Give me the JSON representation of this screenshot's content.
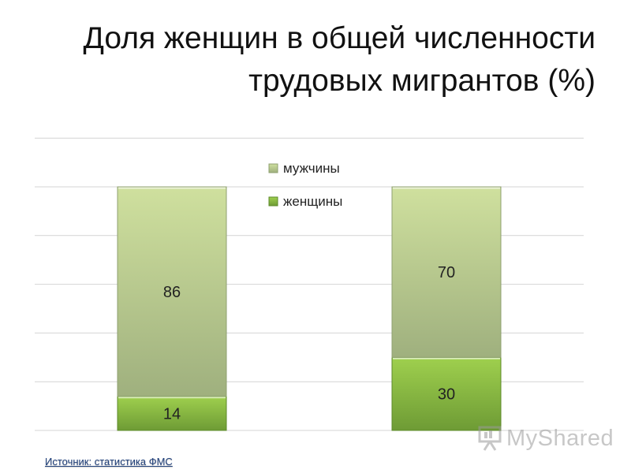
{
  "slide": {
    "title_line1": "Доля женщин в общей численности",
    "title_line2": "трудовых мигрантов (%)",
    "source": "Источник: статистика ФМС",
    "watermark": "MyShared"
  },
  "colors": {
    "men_top": "#cfe09e",
    "men_bottom": "#9fb07e",
    "women_top": "#9fd04e",
    "women_bottom": "#6e9b35",
    "gridline": "#d4d4d4"
  },
  "chart_data": {
    "type": "bar",
    "stacked": true,
    "categories": [
      "",
      ""
    ],
    "series": [
      {
        "name": "женщины",
        "values": [
          14,
          30
        ]
      },
      {
        "name": "мужчины",
        "values": [
          86,
          70
        ]
      }
    ],
    "data_labels": true,
    "ylim": [
      0,
      100
    ],
    "grid": true,
    "legend": {
      "position": "top-center",
      "entries": [
        "мужчины",
        "женщины"
      ]
    },
    "xlabel": "",
    "ylabel": ""
  }
}
